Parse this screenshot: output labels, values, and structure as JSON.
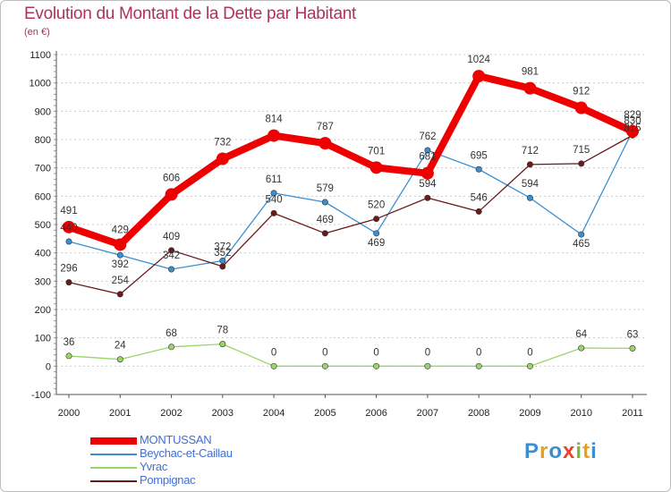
{
  "header": {
    "title": "Evolution du Montant de la Dette par Habitant",
    "subtitle": "(en €)"
  },
  "logo": {
    "text": "Proxiti",
    "colors": [
      "#3a8fd0",
      "#e8a21a",
      "#3a8fd0",
      "#e8452b",
      "#7ab83c",
      "#e8a21a",
      "#3a8fd0"
    ]
  },
  "chart_data": {
    "type": "line",
    "title": "Evolution du Montant de la Dette par Habitant",
    "ylabel": "(en €)",
    "xlabel": "",
    "ylim": [
      -100,
      1100
    ],
    "yticks": [
      "-100",
      "0",
      "100",
      "200",
      "300",
      "400",
      "500",
      "600",
      "700",
      "800",
      "900",
      "1000",
      "1100"
    ],
    "ytick_values": [
      -100,
      0,
      100,
      200,
      300,
      400,
      500,
      600,
      700,
      800,
      900,
      1000,
      1100
    ],
    "categories": [
      "2000",
      "2001",
      "2002",
      "2003",
      "2004",
      "2005",
      "2006",
      "2007",
      "2008",
      "2009",
      "2010",
      "2011"
    ],
    "legend_position": "bottom-left",
    "series": [
      {
        "name": "MONTUSSAN",
        "color": "#ee0000",
        "weight": "bold",
        "values": [
          491,
          429,
          606,
          732,
          814,
          787,
          701,
          681,
          1024,
          981,
          912,
          829
        ],
        "labels": [
          "491",
          "429",
          "606",
          "732",
          "814",
          "787",
          "701",
          "681",
          "1024",
          "981",
          "912",
          "829"
        ]
      },
      {
        "name": "Beychac-et-Caillau",
        "color": "#3b8fd0",
        "weight": "thin",
        "values": [
          440,
          392,
          342,
          372,
          611,
          579,
          469,
          762,
          695,
          594,
          465,
          830
        ],
        "labels": [
          "440",
          "392",
          "342",
          "372",
          "611",
          "579",
          "469",
          "762",
          "695",
          "594",
          "465",
          "830"
        ]
      },
      {
        "name": "Yvrac",
        "color": "#99d66a",
        "weight": "thin",
        "values": [
          36,
          24,
          68,
          78,
          0,
          0,
          0,
          0,
          0,
          0,
          64,
          63
        ],
        "labels": [
          "36",
          "24",
          "68",
          "78",
          "0",
          "0",
          "0",
          "0",
          "0",
          "0",
          "64",
          "63"
        ]
      },
      {
        "name": "Pompignac",
        "color": "#6b1a1a",
        "weight": "thin",
        "values": [
          296,
          254,
          409,
          352,
          540,
          469,
          520,
          594,
          546,
          712,
          715,
          815
        ],
        "labels": [
          "296",
          "254",
          "409",
          "352",
          "540",
          "469",
          "520",
          "594",
          "546",
          "712",
          "715",
          "815"
        ]
      }
    ]
  }
}
